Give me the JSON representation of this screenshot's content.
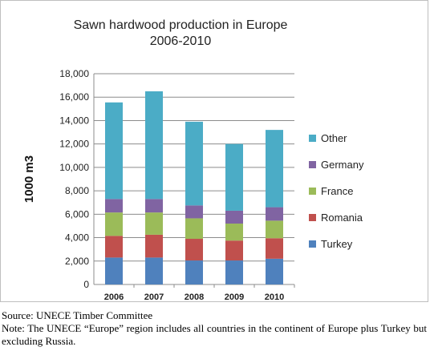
{
  "chart_data": {
    "type": "bar",
    "stacked": true,
    "title": "Sawn hardwood production in Europe",
    "subtitle": "2006-2010",
    "ylabel": "1000 m3",
    "xlabel": "",
    "ylim": [
      0,
      18000
    ],
    "yticks": [
      0,
      2000,
      4000,
      6000,
      8000,
      10000,
      12000,
      14000,
      16000,
      18000
    ],
    "ytick_labels": [
      "0",
      "2,000",
      "4,000",
      "6,000",
      "8,000",
      "10,000",
      "12,000",
      "14,000",
      "16,000",
      "18,000"
    ],
    "categories": [
      "2006",
      "2007",
      "2008",
      "2009",
      "2010"
    ],
    "series": [
      {
        "name": "Turkey",
        "color": "#4f81bd",
        "values": [
          2300,
          2300,
          2050,
          2050,
          2200
        ]
      },
      {
        "name": "Romania",
        "color": "#c0504d",
        "values": [
          1850,
          1950,
          1850,
          1700,
          1750
        ]
      },
      {
        "name": "France",
        "color": "#9bbb59",
        "values": [
          2000,
          1900,
          1750,
          1450,
          1500
        ]
      },
      {
        "name": "Germany",
        "color": "#8064a2",
        "values": [
          1150,
          1150,
          1100,
          1100,
          1150
        ]
      },
      {
        "name": "Other",
        "color": "#4bacc6",
        "values": [
          8250,
          9200,
          7150,
          5700,
          6600
        ]
      }
    ],
    "legend_position": "right",
    "grid": true
  },
  "source_text": "Source: UNECE Timber Committee",
  "note_text": "Note: The UNECE “Europe” region includes all countries in the continent of Europe plus Turkey but excluding Russia."
}
